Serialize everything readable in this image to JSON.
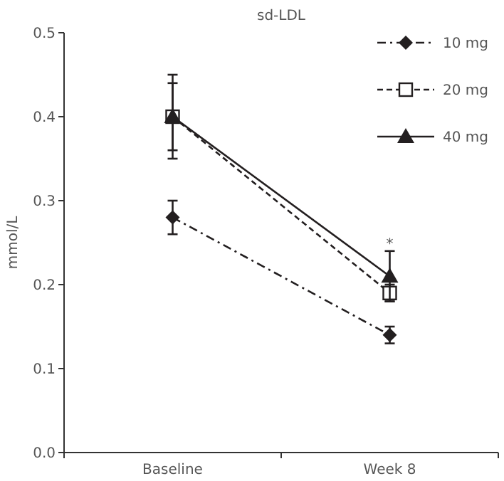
{
  "chart_data": {
    "type": "line",
    "title": "sd-LDL",
    "ylabel": "mmol/L",
    "categories": [
      "Baseline",
      "Week 8"
    ],
    "series": [
      {
        "name": "10 mg",
        "color": "#231f20",
        "values": [
          0.28,
          0.14
        ],
        "errors": [
          0.02,
          0.01
        ],
        "marker": "diamond",
        "line_style": "dashdot"
      },
      {
        "name": "20 mg",
        "color": "#231f20",
        "values": [
          0.4,
          0.19
        ],
        "errors": [
          0.04,
          0.01
        ],
        "marker": "square",
        "line_style": "dashed"
      },
      {
        "name": "40 mg",
        "color": "#231f20",
        "values": [
          0.4,
          0.21
        ],
        "errors": [
          0.05,
          0.03
        ],
        "marker": "triangle",
        "line_style": "solid"
      }
    ],
    "ylim": [
      0,
      0.5
    ],
    "yticks": [
      {
        "value": 0,
        "label": "0.0"
      },
      0.1,
      0.2,
      0.3,
      0.4,
      0.5
    ],
    "annotations": [
      "*"
    ],
    "legend": "top right",
    "grid": false
  }
}
